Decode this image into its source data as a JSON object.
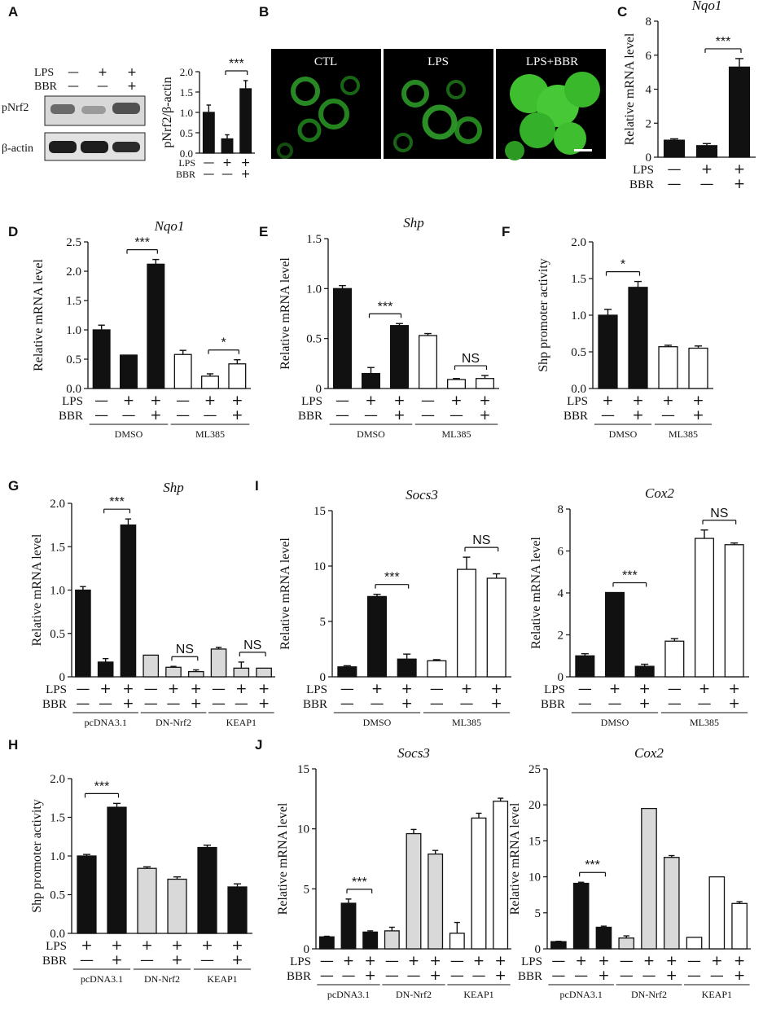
{
  "colors": {
    "dmso_bar": "#111111",
    "grey_bar": "#d9d9d9",
    "ml385_bar": "#ffffff",
    "cell_green": "#3fbf2f"
  },
  "panel_a": {
    "label": "A",
    "row_labels": [
      "LPS",
      "BBR"
    ],
    "row_signs": [
      [
        "—",
        "+",
        "+"
      ],
      [
        "—",
        "—",
        "+"
      ]
    ],
    "blot_labels": [
      "pNrf2",
      "β-actin"
    ],
    "chart_data": {
      "type": "bar",
      "ylabel": "pNrf2/β-actin",
      "ylim": [
        0,
        2.0
      ],
      "yticks": [
        "0.0",
        "0.5",
        "1.0",
        "1.5",
        "2.0"
      ],
      "values": [
        1.0,
        0.35,
        1.58
      ],
      "errors": [
        0.18,
        0.1,
        0.2
      ],
      "fills": [
        "#111111",
        "#111111",
        "#111111"
      ],
      "rows": [
        {
          "label": "LPS",
          "signs": [
            "—",
            "+",
            "+"
          ]
        },
        {
          "label": "BBR",
          "signs": [
            "—",
            "—",
            "+"
          ]
        }
      ],
      "sig": [
        {
          "from": 1,
          "to": 2,
          "text": "***"
        }
      ]
    }
  },
  "panel_b": {
    "label": "B",
    "images": [
      "CTL",
      "LPS",
      "LPS+BBR"
    ]
  },
  "panel_c": {
    "label": "C",
    "chart_data": {
      "type": "bar",
      "title": "Nqo1",
      "ylabel": "Relative  mRNA  level",
      "ylim": [
        0,
        8
      ],
      "yticks": [
        "0",
        "2",
        "4",
        "6",
        "8"
      ],
      "values": [
        1.0,
        0.68,
        5.3
      ],
      "errors": [
        0.08,
        0.12,
        0.5
      ],
      "fills": [
        "#111111",
        "#111111",
        "#111111"
      ],
      "rows": [
        {
          "label": "LPS",
          "signs": [
            "—",
            "+",
            "+"
          ]
        },
        {
          "label": "BBR",
          "signs": [
            "—",
            "—",
            "+"
          ]
        }
      ],
      "sig": [
        {
          "from": 1,
          "to": 2,
          "text": "***"
        }
      ]
    }
  },
  "panel_d": {
    "label": "D",
    "chart_data": {
      "type": "bar",
      "title": "Nqo1",
      "ylabel": "Relative  mRNA  level",
      "ylim": [
        0,
        2.5
      ],
      "yticks": [
        "0.0",
        "0.5",
        "1.0",
        "1.5",
        "2.0",
        "2.5"
      ],
      "values": [
        1.0,
        0.57,
        2.12,
        0.58,
        0.21,
        0.42
      ],
      "errors": [
        0.08,
        0.0,
        0.08,
        0.07,
        0.04,
        0.07
      ],
      "fills": [
        "#111111",
        "#111111",
        "#111111",
        "#ffffff",
        "#ffffff",
        "#ffffff"
      ],
      "rows": [
        {
          "label": "LPS",
          "signs": [
            "—",
            "+",
            "+",
            "—",
            "+",
            "+"
          ]
        },
        {
          "label": "BBR",
          "signs": [
            "—",
            "—",
            "+",
            "—",
            "—",
            "+"
          ]
        }
      ],
      "groups": [
        {
          "label": "DMSO",
          "from": 0,
          "to": 2
        },
        {
          "label": "ML385",
          "from": 3,
          "to": 5
        }
      ],
      "sig": [
        {
          "from": 1,
          "to": 2,
          "text": "***"
        },
        {
          "from": 4,
          "to": 5,
          "text": "*"
        }
      ]
    }
  },
  "panel_e": {
    "label": "E",
    "chart_data": {
      "type": "bar",
      "title": "Shp",
      "ylabel": "Relative  mRNA  level",
      "ylim": [
        0,
        1.5
      ],
      "yticks": [
        "0",
        "0.5",
        "1.0",
        "1.5"
      ],
      "values": [
        1.0,
        0.15,
        0.63,
        0.53,
        0.09,
        0.1
      ],
      "errors": [
        0.03,
        0.06,
        0.02,
        0.02,
        0.01,
        0.03
      ],
      "fills": [
        "#111111",
        "#111111",
        "#111111",
        "#ffffff",
        "#ffffff",
        "#ffffff"
      ],
      "rows": [
        {
          "label": "LPS",
          "signs": [
            "—",
            "+",
            "+",
            "—",
            "+",
            "+"
          ]
        },
        {
          "label": "BBR",
          "signs": [
            "—",
            "—",
            "+",
            "—",
            "—",
            "+"
          ]
        }
      ],
      "groups": [
        {
          "label": "DMSO",
          "from": 0,
          "to": 2
        },
        {
          "label": "ML385",
          "from": 3,
          "to": 5
        }
      ],
      "sig": [
        {
          "from": 1,
          "to": 2,
          "text": "***"
        },
        {
          "from": 4,
          "to": 5,
          "text": "NS"
        }
      ]
    }
  },
  "panel_f": {
    "label": "F",
    "chart_data": {
      "type": "bar",
      "ylabel": "Shp promoter  activity",
      "ylim": [
        0,
        2.0
      ],
      "yticks": [
        "0.0",
        "0.5",
        "1.0",
        "1.5",
        "2.0"
      ],
      "values": [
        1.0,
        1.38,
        0.57,
        0.55
      ],
      "errors": [
        0.08,
        0.08,
        0.02,
        0.03
      ],
      "fills": [
        "#111111",
        "#111111",
        "#ffffff",
        "#ffffff"
      ],
      "rows": [
        {
          "label": "LPS",
          "signs": [
            "+",
            "+",
            "+",
            "+"
          ]
        },
        {
          "label": "BBR",
          "signs": [
            "—",
            "+",
            "—",
            "+"
          ]
        }
      ],
      "groups": [
        {
          "label": "DMSO",
          "from": 0,
          "to": 1
        },
        {
          "label": "ML385",
          "from": 2,
          "to": 3
        }
      ],
      "sig": [
        {
          "from": 0,
          "to": 1,
          "text": "*"
        }
      ]
    }
  },
  "panel_g": {
    "label": "G",
    "chart_data": {
      "type": "bar",
      "title": "Shp",
      "ylabel": "Relative  mRNA  level",
      "ylim": [
        0,
        2.0
      ],
      "yticks": [
        "0",
        "0.5",
        "1.0",
        "1.5",
        "2.0"
      ],
      "values": [
        1.0,
        0.17,
        1.75,
        0.25,
        0.11,
        0.06,
        0.32,
        0.1,
        0.1
      ],
      "errors": [
        0.04,
        0.04,
        0.07,
        0.0,
        0.01,
        0.02,
        0.02,
        0.07,
        0.0
      ],
      "fills": [
        "#111111",
        "#111111",
        "#111111",
        "#d9d9d9",
        "#d9d9d9",
        "#d9d9d9",
        "#d9d9d9",
        "#d9d9d9",
        "#d9d9d9"
      ],
      "rows": [
        {
          "label": "LPS",
          "signs": [
            "—",
            "+",
            "+",
            "—",
            "+",
            "+",
            "—",
            "+",
            "+"
          ]
        },
        {
          "label": "BBR",
          "signs": [
            "—",
            "—",
            "+",
            "—",
            "—",
            "+",
            "—",
            "—",
            "+"
          ]
        }
      ],
      "groups": [
        {
          "label": "pcDNA3.1",
          "from": 0,
          "to": 2
        },
        {
          "label": "DN-Nrf2",
          "from": 3,
          "to": 5
        },
        {
          "label": "KEAP1",
          "from": 6,
          "to": 8
        }
      ],
      "sig": [
        {
          "from": 1,
          "to": 2,
          "text": "***"
        },
        {
          "from": 4,
          "to": 5,
          "text": "NS"
        },
        {
          "from": 7,
          "to": 8,
          "text": "NS"
        }
      ]
    }
  },
  "panel_h": {
    "label": "H",
    "chart_data": {
      "type": "bar",
      "ylabel": "Shp promoter  activity",
      "ylim": [
        0,
        2.0
      ],
      "yticks": [
        "0.0",
        "0.5",
        "1.0",
        "1.5",
        "2.0"
      ],
      "values": [
        1.0,
        1.63,
        0.84,
        0.7,
        1.11,
        0.6
      ],
      "errors": [
        0.02,
        0.05,
        0.02,
        0.03,
        0.03,
        0.04
      ],
      "fills": [
        "#111111",
        "#111111",
        "#d9d9d9",
        "#d9d9d9",
        "#111111",
        "#111111"
      ],
      "rows": [
        {
          "label": "LPS",
          "signs": [
            "+",
            "+",
            "+",
            "+",
            "+",
            "+"
          ]
        },
        {
          "label": "BBR",
          "signs": [
            "—",
            "+",
            "—",
            "+",
            "—",
            "+"
          ]
        }
      ],
      "groups": [
        {
          "label": "pcDNA3.1",
          "from": 0,
          "to": 1
        },
        {
          "label": "DN-Nrf2",
          "from": 2,
          "to": 3
        },
        {
          "label": "KEAP1",
          "from": 4,
          "to": 5
        }
      ],
      "sig": [
        {
          "from": 0,
          "to": 1,
          "text": "***"
        }
      ]
    }
  },
  "panel_i": {
    "label": "I",
    "charts": [
      {
        "type": "bar",
        "title": "Socs3",
        "ylabel": "Relative  mRNA  level",
        "ylim": [
          0,
          15
        ],
        "yticks": [
          "0",
          "5",
          "10",
          "15"
        ],
        "values": [
          0.9,
          7.25,
          1.6,
          1.45,
          9.7,
          8.9
        ],
        "errors": [
          0.1,
          0.2,
          0.45,
          0.1,
          1.1,
          0.4
        ],
        "fills": [
          "#111111",
          "#111111",
          "#111111",
          "#ffffff",
          "#ffffff",
          "#ffffff"
        ],
        "rows": [
          {
            "label": "LPS",
            "signs": [
              "—",
              "+",
              "+",
              "—",
              "+",
              "+"
            ]
          },
          {
            "label": "BBR",
            "signs": [
              "—",
              "—",
              "+",
              "—",
              "—",
              "+"
            ]
          }
        ],
        "groups": [
          {
            "label": "DMSO",
            "from": 0,
            "to": 2
          },
          {
            "label": "ML385",
            "from": 3,
            "to": 5
          }
        ],
        "sig": [
          {
            "from": 1,
            "to": 2,
            "text": "***"
          },
          {
            "from": 4,
            "to": 5,
            "text": "NS"
          }
        ]
      },
      {
        "type": "bar",
        "title": "Cox2",
        "ylabel": "Relative  mRNA  level",
        "ylim": [
          0,
          8
        ],
        "yticks": [
          "0",
          "2",
          "4",
          "6",
          "8"
        ],
        "values": [
          1.0,
          4.02,
          0.5,
          1.7,
          6.6,
          6.3
        ],
        "errors": [
          0.1,
          0.0,
          0.1,
          0.12,
          0.4,
          0.08
        ],
        "fills": [
          "#111111",
          "#111111",
          "#111111",
          "#ffffff",
          "#ffffff",
          "#ffffff"
        ],
        "rows": [
          {
            "label": "LPS",
            "signs": [
              "—",
              "+",
              "+",
              "—",
              "+",
              "+"
            ]
          },
          {
            "label": "BBR",
            "signs": [
              "—",
              "—",
              "+",
              "—",
              "—",
              "+"
            ]
          }
        ],
        "groups": [
          {
            "label": "DMSO",
            "from": 0,
            "to": 2
          },
          {
            "label": "ML385",
            "from": 3,
            "to": 5
          }
        ],
        "sig": [
          {
            "from": 1,
            "to": 2,
            "text": "***"
          },
          {
            "from": 4,
            "to": 5,
            "text": "NS"
          }
        ]
      }
    ]
  },
  "panel_j": {
    "label": "J",
    "charts": [
      {
        "type": "bar",
        "title": "Socs3",
        "ylabel": "Relative  mRNA  level",
        "ylim": [
          0,
          15
        ],
        "yticks": [
          "0",
          "5",
          "10",
          "15"
        ],
        "values": [
          1.0,
          3.8,
          1.4,
          1.5,
          9.6,
          7.9,
          1.3,
          10.9,
          12.3
        ],
        "errors": [
          0.05,
          0.35,
          0.1,
          0.3,
          0.35,
          0.3,
          0.9,
          0.4,
          0.25
        ],
        "fills": [
          "#111111",
          "#111111",
          "#111111",
          "#d9d9d9",
          "#d9d9d9",
          "#d9d9d9",
          "#ffffff",
          "#ffffff",
          "#ffffff"
        ],
        "rows": [
          {
            "label": "LPS",
            "signs": [
              "—",
              "+",
              "+",
              "—",
              "+",
              "+",
              "—",
              "+",
              "+"
            ]
          },
          {
            "label": "BBR",
            "signs": [
              "—",
              "—",
              "+",
              "—",
              "—",
              "+",
              "—",
              "—",
              "+"
            ]
          }
        ],
        "groups": [
          {
            "label": "pcDNA3.1",
            "from": 0,
            "to": 2
          },
          {
            "label": "DN-Nrf2",
            "from": 3,
            "to": 5
          },
          {
            "label": "KEAP1",
            "from": 6,
            "to": 8
          }
        ],
        "sig": [
          {
            "from": 1,
            "to": 2,
            "text": "***"
          }
        ]
      },
      {
        "type": "bar",
        "title": "Cox2",
        "ylabel": "Relative  mRNA  level",
        "ylim": [
          0,
          25
        ],
        "yticks": [
          "0",
          "5",
          "10",
          "15",
          "20",
          "25"
        ],
        "values": [
          1.0,
          9.1,
          3.0,
          1.5,
          19.5,
          12.7,
          1.6,
          10.0,
          6.3
        ],
        "errors": [
          0.05,
          0.15,
          0.15,
          0.3,
          0.0,
          0.25,
          0.0,
          0.0,
          0.25
        ],
        "fills": [
          "#111111",
          "#111111",
          "#111111",
          "#d9d9d9",
          "#d9d9d9",
          "#d9d9d9",
          "#ffffff",
          "#ffffff",
          "#ffffff"
        ],
        "rows": [
          {
            "label": "LPS",
            "signs": [
              "—",
              "+",
              "+",
              "—",
              "+",
              "+",
              "—",
              "+",
              "+"
            ]
          },
          {
            "label": "BBR",
            "signs": [
              "—",
              "—",
              "+",
              "—",
              "—",
              "+",
              "—",
              "—",
              "+"
            ]
          }
        ],
        "groups": [
          {
            "label": "pcDNA3.1",
            "from": 0,
            "to": 2
          },
          {
            "label": "DN-Nrf2",
            "from": 3,
            "to": 5
          },
          {
            "label": "KEAP1",
            "from": 6,
            "to": 8
          }
        ],
        "sig": [
          {
            "from": 1,
            "to": 2,
            "text": "***"
          }
        ]
      }
    ]
  }
}
